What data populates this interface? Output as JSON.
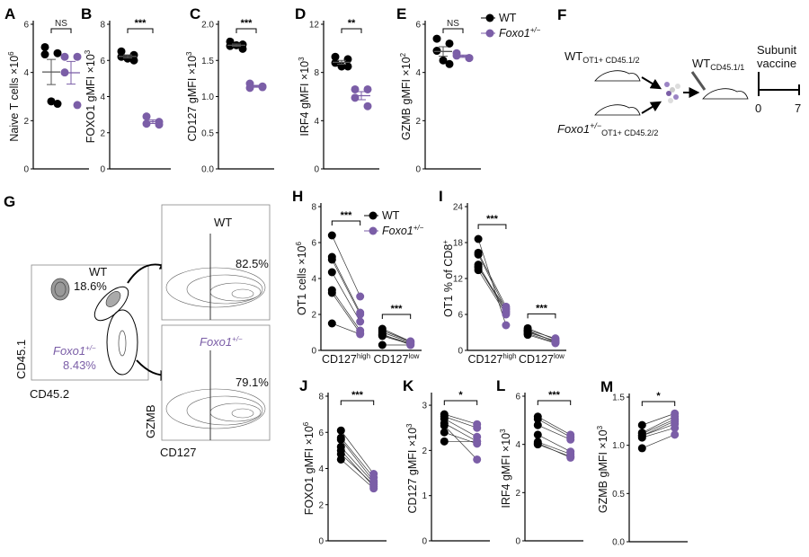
{
  "colors": {
    "wt": "#000000",
    "foxo1": "#7b5ea7",
    "flow": "#555555"
  },
  "legend": {
    "wt": "WT",
    "foxo1": "Foxo1",
    "foxo1_sup": "+/−"
  },
  "chart_data": [
    {
      "id": "A",
      "letter": "A",
      "type": "scatter",
      "ylabel": "Naive T cells ×10",
      "ylabel_sup": "6",
      "ylim": [
        0,
        6
      ],
      "ticks": [
        "0",
        "2",
        "4",
        "6"
      ],
      "sig": "NS",
      "groups": [
        {
          "name": "WT",
          "values": [
            5.05,
            4.8,
            4.75,
            2.7,
            2.8
          ]
        },
        {
          "name": "Foxo1+/−",
          "values": [
            4.65,
            4.65,
            4.0,
            2.65
          ]
        }
      ]
    },
    {
      "id": "B",
      "letter": "B",
      "type": "scatter",
      "ylabel": "FOXO1 gMFI ×10",
      "ylabel_sup": "3",
      "ylim": [
        0,
        8
      ],
      "ticks": [
        "0",
        "2",
        "4",
        "6",
        "8"
      ],
      "sig": "***",
      "groups": [
        {
          "name": "WT",
          "values": [
            6.5,
            6.3,
            6.2,
            6.0,
            6.1
          ]
        },
        {
          "name": "Foxo1+/−",
          "values": [
            2.9,
            2.6,
            2.5,
            2.45
          ]
        }
      ]
    },
    {
      "id": "C",
      "letter": "C",
      "type": "scatter",
      "ylabel": "CD127 gMFI ×10",
      "ylabel_sup": "3",
      "ylim": [
        0,
        2
      ],
      "ticks": [
        "0.0",
        "0.5",
        "1.0",
        "1.5",
        "2.0"
      ],
      "sig": "***",
      "groups": [
        {
          "name": "WT",
          "values": [
            1.76,
            1.72,
            1.7,
            1.66,
            1.71
          ]
        },
        {
          "name": "Foxo1+/−",
          "values": [
            1.18,
            1.13,
            1.12,
            1.14
          ]
        }
      ]
    },
    {
      "id": "D",
      "letter": "D",
      "type": "scatter",
      "ylabel": "IRF4 gMFI ×10",
      "ylabel_sup": "3",
      "ylim": [
        0,
        12
      ],
      "ticks": [
        "0",
        "4",
        "8",
        "12"
      ],
      "sig": "**",
      "groups": [
        {
          "name": "WT",
          "values": [
            9.3,
            9.1,
            8.8,
            8.5,
            8.5
          ]
        },
        {
          "name": "Foxo1+/−",
          "values": [
            6.6,
            6.6,
            5.9,
            5.2
          ]
        }
      ]
    },
    {
      "id": "E",
      "letter": "E",
      "type": "scatter",
      "ylabel": "GZMB gMFI ×10",
      "ylabel_sup": "2",
      "ylim": [
        0,
        6
      ],
      "ticks": [
        "0",
        "2",
        "4",
        "6"
      ],
      "sig": "NS",
      "groups": [
        {
          "name": "WT",
          "values": [
            5.4,
            5.2,
            4.9,
            4.35,
            4.5
          ]
        },
        {
          "name": "Foxo1+/−",
          "values": [
            4.8,
            4.6,
            4.7,
            4.6
          ]
        }
      ]
    },
    {
      "id": "H",
      "letter": "H",
      "type": "paired",
      "ylabel": "OT1 cells ×10",
      "ylabel_sup": "6",
      "ylim": [
        0,
        8
      ],
      "ticks": [
        "0",
        "2",
        "4",
        "6",
        "8"
      ],
      "categories": [
        {
          "label": "CD127",
          "sup": "high",
          "sig": "***",
          "pairs": [
            [
              6.4,
              3.0
            ],
            [
              5.2,
              2.1
            ],
            [
              5.05,
              2.0
            ],
            [
              4.35,
              1.6
            ],
            [
              3.35,
              1.1
            ],
            [
              3.2,
              0.95
            ],
            [
              1.5,
              0.9
            ]
          ]
        },
        {
          "label": "CD127",
          "sup": "low",
          "sig": "***",
          "pairs": [
            [
              1.2,
              0.5
            ],
            [
              1.1,
              0.5
            ],
            [
              1.0,
              0.45
            ],
            [
              0.85,
              0.4
            ],
            [
              0.8,
              0.35
            ],
            [
              0.9,
              0.3
            ],
            [
              0.3,
              0.3
            ]
          ]
        }
      ]
    },
    {
      "id": "I",
      "letter": "I",
      "type": "paired",
      "ylabel": "OT1 % of CD8",
      "ylabel_sup": "+",
      "ylim": [
        0,
        24
      ],
      "ticks": [
        "0",
        "6",
        "12",
        "18",
        "24"
      ],
      "categories": [
        {
          "label": "CD127",
          "sup": "high",
          "sig": "***",
          "pairs": [
            [
              18.6,
              4.2
            ],
            [
              16.3,
              7.3
            ],
            [
              16.0,
              6.8
            ],
            [
              14.3,
              6.5
            ],
            [
              13.8,
              7.0
            ],
            [
              13.4,
              6.0
            ],
            [
              14.0,
              6.3
            ]
          ]
        },
        {
          "label": "CD127",
          "sup": "low",
          "sig": "***",
          "pairs": [
            [
              3.7,
              1.8
            ],
            [
              3.4,
              2.0
            ],
            [
              3.2,
              1.5
            ],
            [
              2.8,
              1.3
            ],
            [
              2.6,
              1.2
            ],
            [
              3.0,
              1.6
            ],
            [
              3.3,
              1.4
            ]
          ]
        }
      ]
    },
    {
      "id": "J",
      "letter": "J",
      "type": "paired",
      "ylabel": "FOXO1 gMFI ×10",
      "ylabel_sup": "6",
      "ylim": [
        0,
        8
      ],
      "ticks": [
        "0",
        "2",
        "4",
        "6",
        "8"
      ],
      "categories": [
        {
          "label": "",
          "sig": "***",
          "pairs": [
            [
              6.1,
              3.7
            ],
            [
              5.7,
              3.5
            ],
            [
              5.6,
              3.3
            ],
            [
              5.2,
              3.2
            ],
            [
              4.8,
              3.1
            ],
            [
              4.5,
              2.9
            ],
            [
              5.0,
              3.0
            ]
          ]
        }
      ]
    },
    {
      "id": "K",
      "letter": "K",
      "type": "paired",
      "ylabel": "CD127 gMFI ×10",
      "ylabel_sup": "3",
      "ylim": [
        0,
        3.2
      ],
      "ticks": [
        "0",
        "1",
        "2",
        "3"
      ],
      "categories": [
        {
          "label": "",
          "sig": "*",
          "pairs": [
            [
              2.8,
              2.58
            ],
            [
              2.75,
              2.5
            ],
            [
              2.7,
              2.3
            ],
            [
              2.6,
              2.2
            ],
            [
              2.55,
              1.8
            ],
            [
              2.4,
              2.15
            ],
            [
              2.2,
              2.2
            ]
          ]
        }
      ]
    },
    {
      "id": "L",
      "letter": "L",
      "type": "paired",
      "ylabel": "IRF4 gMFI ×10",
      "ylabel_sup": "3",
      "ylim": [
        0,
        6
      ],
      "ticks": [
        "0",
        "2",
        "4",
        "6"
      ],
      "categories": [
        {
          "label": "",
          "sig": "***",
          "pairs": [
            [
              5.15,
              4.4
            ],
            [
              5.05,
              4.3
            ],
            [
              4.8,
              4.2
            ],
            [
              4.4,
              3.7
            ],
            [
              4.1,
              3.6
            ],
            [
              4.0,
              3.5
            ],
            [
              4.05,
              3.45
            ]
          ]
        }
      ]
    },
    {
      "id": "M",
      "letter": "M",
      "type": "paired",
      "ylabel": "GZMB gMFI ×10",
      "ylabel_sup": "3",
      "ylim": [
        0,
        1.5
      ],
      "ticks": [
        "0.0",
        "0.5",
        "1.0",
        "1.5"
      ],
      "categories": [
        {
          "label": "",
          "sig": "*",
          "pairs": [
            [
              1.21,
              1.33
            ],
            [
              1.13,
              1.3
            ],
            [
              1.12,
              1.27
            ],
            [
              1.1,
              1.25
            ],
            [
              1.08,
              1.18
            ],
            [
              0.97,
              1.11
            ],
            [
              1.1,
              1.22
            ]
          ]
        }
      ]
    }
  ],
  "diagram": {
    "letter": "F",
    "donor_wt": "WT",
    "donor_wt_sub": "OT1+ CD45.1/2",
    "donor_foxo1": "Foxo1",
    "donor_foxo1_sup": "+/−",
    "donor_foxo1_sub": "OT1+ CD45.2/2",
    "recipient": "WT",
    "recipient_sub": "CD45.1/1",
    "vaccine_line1": "Subunit",
    "vaccine_line2": "vaccine",
    "timeline_start": "0",
    "timeline_end": "7"
  },
  "flow": {
    "letter": "G",
    "gate_wt_label": "WT",
    "gate_wt_pct": "18.6%",
    "gate_foxo1_label": "Foxo1",
    "gate_foxo1_sup": "+/−",
    "gate_foxo1_pct": "8.43%",
    "x_axis_main": "CD45.2",
    "y_axis_main": "CD45.1",
    "top_plot_title": "WT",
    "top_plot_pct": "82.5%",
    "bottom_plot_title": "Foxo1",
    "bottom_plot_sup": "+/−",
    "bottom_plot_pct": "79.1%",
    "x_axis_sub": "CD127",
    "y_axis_sub": "GZMB"
  }
}
